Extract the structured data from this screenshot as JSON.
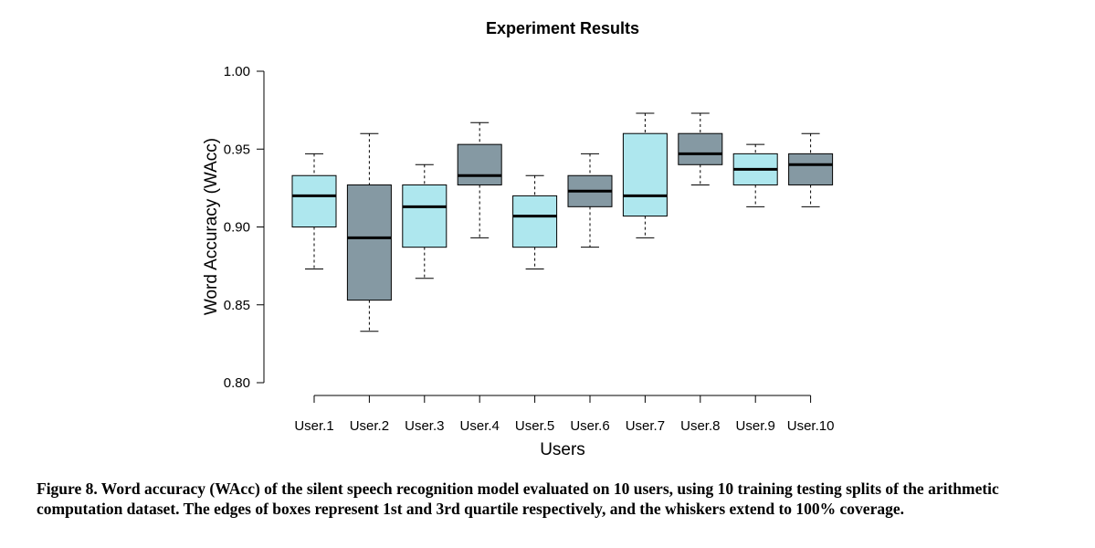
{
  "chart_data": {
    "type": "boxplot",
    "title": "Experiment Results",
    "xlabel": "Users",
    "ylabel": "Word Accuracy (WAcc)",
    "ylim": [
      0.8,
      1.0
    ],
    "yticks": [
      "0.80",
      "0.85",
      "0.90",
      "0.95",
      "1.00"
    ],
    "grid": false,
    "categories": [
      "User.1",
      "User.2",
      "User.3",
      "User.4",
      "User.5",
      "User.6",
      "User.7",
      "User.8",
      "User.9",
      "User.10"
    ],
    "boxes": [
      {
        "min": 0.873,
        "q1": 0.9,
        "median": 0.92,
        "q3": 0.933,
        "max": 0.947
      },
      {
        "min": 0.833,
        "q1": 0.853,
        "median": 0.893,
        "q3": 0.927,
        "max": 0.96
      },
      {
        "min": 0.867,
        "q1": 0.887,
        "median": 0.913,
        "q3": 0.927,
        "max": 0.94
      },
      {
        "min": 0.893,
        "q1": 0.927,
        "median": 0.933,
        "q3": 0.953,
        "max": 0.967
      },
      {
        "min": 0.873,
        "q1": 0.887,
        "median": 0.907,
        "q3": 0.92,
        "max": 0.933
      },
      {
        "min": 0.887,
        "q1": 0.913,
        "median": 0.923,
        "q3": 0.933,
        "max": 0.947
      },
      {
        "min": 0.893,
        "q1": 0.907,
        "median": 0.92,
        "q3": 0.96,
        "max": 0.973
      },
      {
        "min": 0.927,
        "q1": 0.94,
        "median": 0.947,
        "q3": 0.96,
        "max": 0.973
      },
      {
        "min": 0.913,
        "q1": 0.927,
        "median": 0.937,
        "q3": 0.947,
        "max": 0.953
      },
      {
        "min": 0.913,
        "q1": 0.927,
        "median": 0.94,
        "q3": 0.947,
        "max": 0.96
      }
    ],
    "box_colors": [
      "#aee7ee",
      "#8599a3",
      "#aee7ee",
      "#8599a3",
      "#aee7ee",
      "#8599a3",
      "#aee7ee",
      "#8599a3",
      "#aee7ee",
      "#8599a3"
    ]
  },
  "caption": "Figure 8. Word accuracy (WAcc) of the silent speech recognition model evaluated on 10 users, using 10 training testing splits of the arithmetic computation dataset. The edges of boxes represent 1st and 3rd quartile respectively, and the whiskers extend to 100% coverage."
}
